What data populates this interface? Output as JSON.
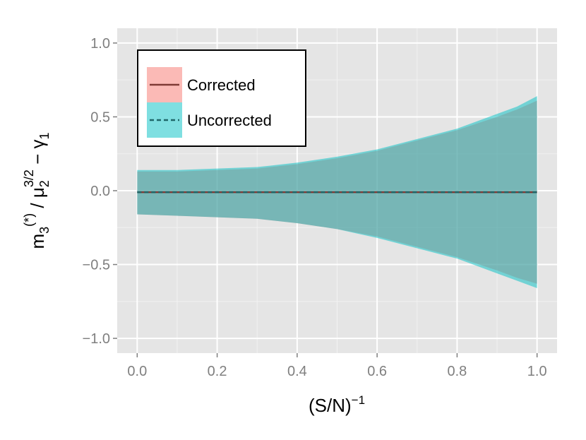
{
  "chart_data": {
    "type": "area",
    "x_axis": {
      "label_base": "(S/N)",
      "label_sup": "−1",
      "range": [
        -0.05,
        1.05
      ],
      "ticks": [
        0.0,
        0.2,
        0.4,
        0.6,
        0.8,
        1.0
      ],
      "tick_labels": [
        "0.0",
        "0.2",
        "0.4",
        "0.6",
        "0.8",
        "1.0"
      ],
      "minor_ticks": [
        0.1,
        0.3,
        0.5,
        0.7,
        0.9
      ]
    },
    "y_axis": {
      "label_parts": {
        "m": "m",
        "m_sub": "3",
        "m_sup": "(*)",
        "slash": " / ",
        "mu": "μ",
        "mu_sub": "2",
        "mu_sup": "3/2",
        "minus": " − ",
        "gamma": "γ",
        "gamma_sub": "1"
      },
      "range": [
        -1.1,
        1.1
      ],
      "ticks": [
        -1.0,
        -0.5,
        0.0,
        0.5,
        1.0
      ],
      "tick_labels": [
        "−1.0",
        "−0.5",
        "0.0",
        "0.5",
        "1.0"
      ],
      "minor_ticks": [
        -0.75,
        -0.25,
        0.25,
        0.75
      ]
    },
    "grid": true,
    "legend": {
      "position": "top-left",
      "entries": [
        {
          "label": "Corrected",
          "fill": "#f8766d",
          "line": "#7f3b36",
          "dash": "solid"
        },
        {
          "label": "Uncorrected",
          "fill": "#00bfc4",
          "line": "#1f6668",
          "dash": "dashed"
        }
      ]
    },
    "series": [
      {
        "name": "Corrected",
        "x": [
          0.0,
          0.1,
          0.2,
          0.3,
          0.4,
          0.5,
          0.6,
          0.7,
          0.8,
          0.9,
          0.95,
          1.0
        ],
        "lower": [
          -0.16,
          -0.17,
          -0.18,
          -0.19,
          -0.22,
          -0.26,
          -0.31,
          -0.38,
          -0.45,
          -0.54,
          -0.59,
          -0.63
        ],
        "upper": [
          0.13,
          0.13,
          0.14,
          0.15,
          0.18,
          0.22,
          0.27,
          0.34,
          0.41,
          0.5,
          0.55,
          0.61
        ],
        "center": [
          -0.01,
          -0.01,
          -0.01,
          -0.01,
          -0.01,
          -0.01,
          -0.01,
          -0.01,
          -0.01,
          -0.01,
          -0.01,
          -0.01
        ]
      },
      {
        "name": "Uncorrected",
        "x": [
          0.0,
          0.1,
          0.2,
          0.3,
          0.4,
          0.5,
          0.6,
          0.7,
          0.8,
          0.9,
          0.95,
          1.0
        ],
        "lower": [
          -0.16,
          -0.17,
          -0.18,
          -0.19,
          -0.22,
          -0.26,
          -0.32,
          -0.39,
          -0.46,
          -0.56,
          -0.61,
          -0.66
        ],
        "upper": [
          0.14,
          0.14,
          0.15,
          0.16,
          0.19,
          0.23,
          0.28,
          0.35,
          0.42,
          0.52,
          0.57,
          0.64
        ],
        "center": [
          -0.01,
          -0.01,
          -0.01,
          -0.01,
          -0.01,
          -0.01,
          -0.01,
          -0.01,
          -0.01,
          -0.01,
          -0.01,
          -0.01
        ]
      }
    ]
  }
}
